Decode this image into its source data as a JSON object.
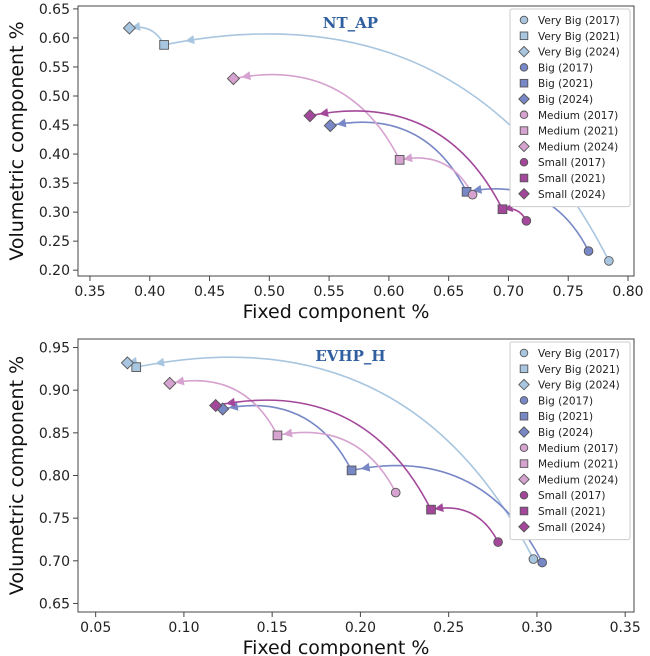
{
  "colors": {
    "very_big": "#a9c6e0",
    "big": "#7887c6",
    "medium": "#d6a2cf",
    "small": "#a3479a",
    "axis": "#444444",
    "title": "#2f5f9e"
  },
  "legend": [
    "Very Big (2017)",
    "Very Big (2021)",
    "Very Big (2024)",
    "Big (2017)",
    "Big (2021)",
    "Big (2024)",
    "Medium (2017)",
    "Medium (2021)",
    "Medium (2024)",
    "Small (2017)",
    "Small (2021)",
    "Small (2024)"
  ],
  "chart_data": [
    {
      "type": "scatter",
      "title": "NT_AP",
      "xlabel": "Fixed component %",
      "ylabel": "Volumetric component %",
      "xlim": [
        0.34,
        0.805
      ],
      "ylim": [
        0.19,
        0.655
      ],
      "xticks": [
        "0.35",
        "0.40",
        "0.45",
        "0.50",
        "0.55",
        "0.60",
        "0.65",
        "0.70",
        "0.75",
        "0.80"
      ],
      "yticks": [
        "0.20",
        "0.25",
        "0.30",
        "0.35",
        "0.40",
        "0.45",
        "0.50",
        "0.55",
        "0.60",
        "0.65"
      ],
      "legend_position": "top-right",
      "series": [
        {
          "name": "Very Big",
          "points": [
            {
              "year": "2017",
              "x": 0.784,
              "y": 0.216
            },
            {
              "year": "2021",
              "x": 0.412,
              "y": 0.588
            },
            {
              "year": "2024",
              "x": 0.383,
              "y": 0.617
            }
          ]
        },
        {
          "name": "Big",
          "points": [
            {
              "year": "2017",
              "x": 0.767,
              "y": 0.233
            },
            {
              "year": "2021",
              "x": 0.665,
              "y": 0.335
            },
            {
              "year": "2024",
              "x": 0.551,
              "y": 0.449
            }
          ]
        },
        {
          "name": "Medium",
          "points": [
            {
              "year": "2017",
              "x": 0.67,
              "y": 0.33
            },
            {
              "year": "2021",
              "x": 0.609,
              "y": 0.39
            },
            {
              "year": "2024",
              "x": 0.47,
              "y": 0.53
            }
          ]
        },
        {
          "name": "Small",
          "points": [
            {
              "year": "2017",
              "x": 0.715,
              "y": 0.285
            },
            {
              "year": "2021",
              "x": 0.695,
              "y": 0.305
            },
            {
              "year": "2024",
              "x": 0.534,
              "y": 0.466
            }
          ]
        }
      ]
    },
    {
      "type": "scatter",
      "title": "EVHP_H",
      "xlabel": "Fixed component %",
      "ylabel": "Volumetric component %",
      "xlim": [
        0.04,
        0.355
      ],
      "ylim": [
        0.64,
        0.96
      ],
      "xticks": [
        "0.05",
        "0.10",
        "0.15",
        "0.20",
        "0.25",
        "0.30",
        "0.35"
      ],
      "yticks": [
        "0.65",
        "0.70",
        "0.75",
        "0.80",
        "0.85",
        "0.90",
        "0.95"
      ],
      "legend_position": "top-right",
      "series": [
        {
          "name": "Very Big",
          "points": [
            {
              "year": "2017",
              "x": 0.298,
              "y": 0.702
            },
            {
              "year": "2021",
              "x": 0.073,
              "y": 0.927
            },
            {
              "year": "2024",
              "x": 0.068,
              "y": 0.932
            }
          ]
        },
        {
          "name": "Big",
          "points": [
            {
              "year": "2017",
              "x": 0.303,
              "y": 0.698
            },
            {
              "year": "2021",
              "x": 0.195,
              "y": 0.806
            },
            {
              "year": "2024",
              "x": 0.122,
              "y": 0.878
            }
          ]
        },
        {
          "name": "Medium",
          "points": [
            {
              "year": "2017",
              "x": 0.22,
              "y": 0.78
            },
            {
              "year": "2021",
              "x": 0.153,
              "y": 0.847
            },
            {
              "year": "2024",
              "x": 0.092,
              "y": 0.908
            }
          ]
        },
        {
          "name": "Small",
          "points": [
            {
              "year": "2017",
              "x": 0.278,
              "y": 0.722
            },
            {
              "year": "2021",
              "x": 0.24,
              "y": 0.76
            },
            {
              "year": "2024",
              "x": 0.118,
              "y": 0.882
            }
          ]
        }
      ]
    }
  ]
}
